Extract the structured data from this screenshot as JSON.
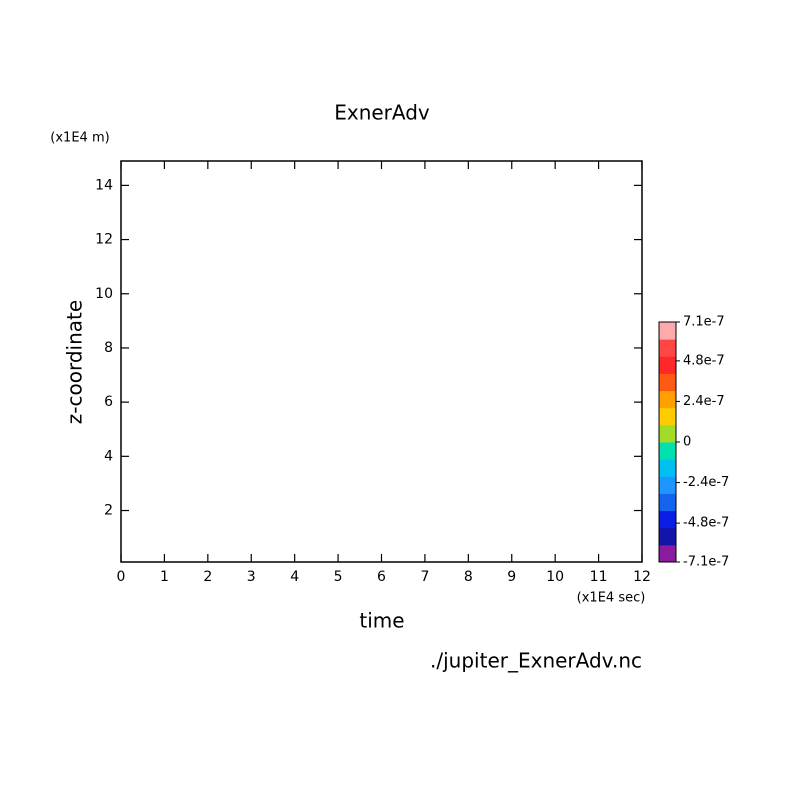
{
  "chart_data": {
    "type": "contour",
    "title": "ExnerAdv",
    "x_label": "time",
    "y_label": "z-coordinate",
    "x_unit": "(x1E4 sec)",
    "y_unit": "(x1E4 m)",
    "source": "./jupiter_ExnerAdv.nc",
    "xlim": [
      0,
      12
    ],
    "xticks": [
      0,
      1,
      2,
      3,
      4,
      5,
      6,
      7,
      8,
      9,
      10,
      11,
      12
    ],
    "ylim": [
      0.1,
      14.9
    ],
    "yticks": [
      2,
      4,
      6,
      8,
      10,
      12,
      14
    ],
    "colorbar": {
      "lim": [
        -7.1e-07,
        7.1e-07
      ],
      "ticks": [
        -7.1e-07,
        -4.8e-07,
        -2.4e-07,
        0,
        2.4e-07,
        4.8e-07,
        7.1e-07
      ],
      "colors": [
        "#8a1aa0",
        "#1414a8",
        "#0a1ee6",
        "#1464f0",
        "#1e96ff",
        "#00c0f0",
        "#00e0b0",
        "#a0dc28",
        "#ffcc00",
        "#ffa000",
        "#ff5a14",
        "#ff2828",
        "#ff4646",
        "#ffaaaa"
      ]
    }
  }
}
